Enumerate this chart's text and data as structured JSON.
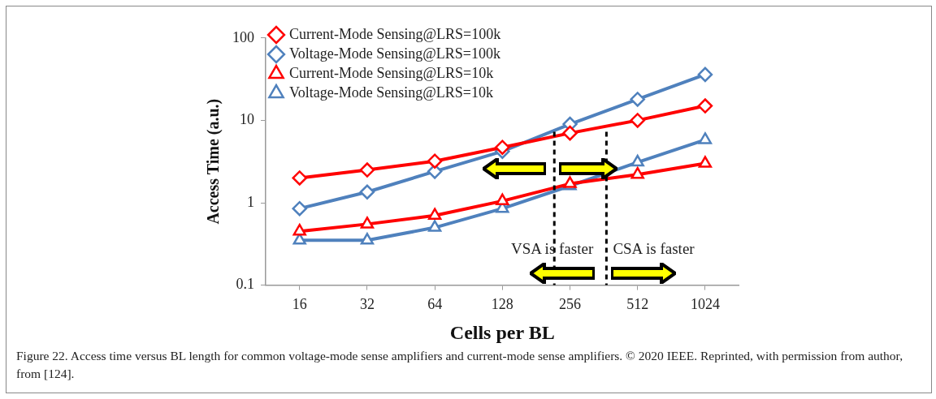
{
  "chart_data": {
    "type": "line",
    "xlabel": "Cells per BL",
    "ylabel": "Access Time (a.u.)",
    "x": [
      16,
      32,
      64,
      128,
      256,
      512,
      1024
    ],
    "xlim": [
      11.3,
      1448
    ],
    "xticks": [
      16,
      32,
      64,
      128,
      256,
      512,
      1024
    ],
    "ylim": [
      0.1,
      100
    ],
    "yticks": [
      0.1,
      1,
      10,
      100
    ],
    "log": "xy",
    "grid": false,
    "legend": "top left",
    "series": [
      {
        "name": "Current-Mode Sensing@LRS=100k",
        "color": "#ff0000",
        "marker": "diamond",
        "values": [
          2.0,
          2.5,
          3.2,
          4.7,
          7,
          10,
          15
        ]
      },
      {
        "name": "Voltage-Mode Sensing@LRS=100k",
        "color": "#4f81bd",
        "marker": "diamond",
        "values": [
          0.85,
          1.35,
          2.4,
          4.2,
          9,
          18,
          36
        ]
      },
      {
        "name": "Current-Mode Sensing@LRS=10k",
        "color": "#ff0000",
        "marker": "triangle",
        "values": [
          0.45,
          0.55,
          0.7,
          1.05,
          1.7,
          2.2,
          3.0
        ]
      },
      {
        "name": "Voltage-Mode Sensing@LRS=10k",
        "color": "#4f81bd",
        "marker": "triangle",
        "values": [
          0.35,
          0.35,
          0.5,
          0.85,
          1.6,
          3.1,
          5.8
        ]
      }
    ],
    "ref_lines": [
      {
        "axis": "x",
        "value": 218,
        "color": "#000000",
        "line_style": "dashed"
      },
      {
        "axis": "x",
        "value": 372,
        "color": "#000000",
        "line_style": "dashed"
      }
    ],
    "annotations": [
      "VSA is faster",
      "CSA is faster",
      "Figure 22.  Access time versus BL length for common voltage-mode sense amplifiers and current-mode sense amplifiers. © 2020 IEEE. Reprinted, with permission from author, from [124]."
    ]
  }
}
